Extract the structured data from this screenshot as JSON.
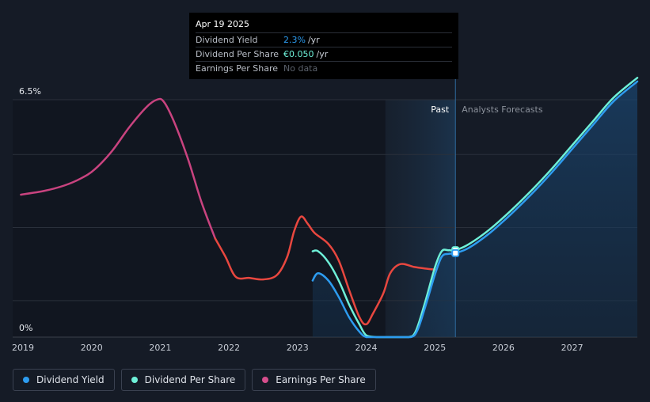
{
  "tooltip": {
    "date": "Apr 19 2025",
    "rows": [
      {
        "label": "Dividend Yield",
        "value": "2.3%",
        "unit": "/yr"
      },
      {
        "label": "Dividend Per Share",
        "value": "€0.050",
        "unit": "/yr"
      },
      {
        "label": "Earnings Per Share",
        "value": "No data",
        "unit": ""
      }
    ]
  },
  "legend": [
    {
      "label": "Dividend Yield",
      "color": "#2d9cf0"
    },
    {
      "label": "Dividend Per Share",
      "color": "#6ef0d8"
    },
    {
      "label": "Earnings Per Share",
      "color": "#d64e8c"
    }
  ],
  "chart_data": {
    "type": "line",
    "y_top_label": "6.5%",
    "y_bottom_label": "0%",
    "ylim": [
      0,
      6.5
    ],
    "xlim": [
      2018.85,
      2027.95
    ],
    "x_ticks": [
      2019,
      2020,
      2021,
      2022,
      2023,
      2024,
      2025,
      2026,
      2027
    ],
    "x_tick_labels": [
      "2019",
      "2020",
      "2021",
      "2022",
      "2023",
      "2024",
      "2025",
      "2026",
      "2027"
    ],
    "past_label": "Past",
    "forecast_label": "Analysts Forecasts",
    "past_band_start": 2024.28,
    "current_date": 2025.3,
    "colors": {
      "dividend_yield": "#2d9cf0",
      "dividend_per_share": "#6ef0d8",
      "eps_early": "#c9437f",
      "eps_late": "#e8473f"
    },
    "series": [
      {
        "name": "Earnings Per Share",
        "x": [
          2018.97,
          2019.3,
          2019.6,
          2019.85,
          2020.05,
          2020.3,
          2020.55,
          2020.8,
          2020.95,
          2021.05,
          2021.2,
          2021.4,
          2021.6,
          2021.8,
          2021.95,
          2022.1,
          2022.3,
          2022.5,
          2022.7,
          2022.85,
          2022.95,
          2023.05,
          2023.15,
          2023.25,
          2023.45,
          2023.6,
          2023.75,
          2023.9,
          2024.0,
          2024.1,
          2024.25,
          2024.35,
          2024.5,
          2024.7,
          2024.85,
          2025.0
        ],
        "values": [
          3.9,
          4.0,
          4.15,
          4.35,
          4.6,
          5.1,
          5.75,
          6.3,
          6.5,
          6.45,
          5.9,
          4.9,
          3.7,
          2.7,
          2.2,
          1.65,
          1.62,
          1.58,
          1.7,
          2.2,
          2.9,
          3.3,
          3.1,
          2.85,
          2.55,
          2.1,
          1.3,
          0.55,
          0.35,
          0.65,
          1.2,
          1.75,
          2.0,
          1.92,
          1.88,
          1.85
        ]
      },
      {
        "name": "Dividend Per Share",
        "x": [
          2023.22,
          2023.3,
          2023.45,
          2023.6,
          2023.75,
          2023.9,
          2024.0,
          2024.15,
          2024.3,
          2024.45,
          2024.62,
          2024.72,
          2024.85,
          2025.0,
          2025.1,
          2025.2,
          2025.3,
          2025.5,
          2025.8,
          2026.1,
          2026.4,
          2026.7,
          2027.0,
          2027.3,
          2027.6,
          2027.95
        ],
        "values": [
          2.35,
          2.35,
          2.05,
          1.55,
          0.9,
          0.35,
          0.05,
          0.0,
          0.0,
          0.0,
          0.0,
          0.15,
          0.9,
          1.9,
          2.35,
          2.38,
          2.38,
          2.55,
          2.95,
          3.45,
          4.0,
          4.6,
          5.25,
          5.9,
          6.55,
          7.1
        ]
      },
      {
        "name": "Dividend Yield",
        "x": [
          2023.22,
          2023.3,
          2023.45,
          2023.6,
          2023.75,
          2023.9,
          2024.0,
          2024.15,
          2024.3,
          2024.45,
          2024.65,
          2024.75,
          2024.88,
          2025.0,
          2025.1,
          2025.2,
          2025.3,
          2025.5,
          2025.8,
          2026.1,
          2026.4,
          2026.7,
          2027.0,
          2027.3,
          2027.6,
          2027.95
        ],
        "values": [
          1.55,
          1.75,
          1.55,
          1.1,
          0.55,
          0.15,
          0.0,
          0.0,
          0.0,
          0.0,
          0.0,
          0.2,
          0.95,
          1.7,
          2.2,
          2.28,
          2.3,
          2.45,
          2.85,
          3.35,
          3.9,
          4.5,
          5.15,
          5.8,
          6.45,
          7.0
        ]
      }
    ]
  }
}
